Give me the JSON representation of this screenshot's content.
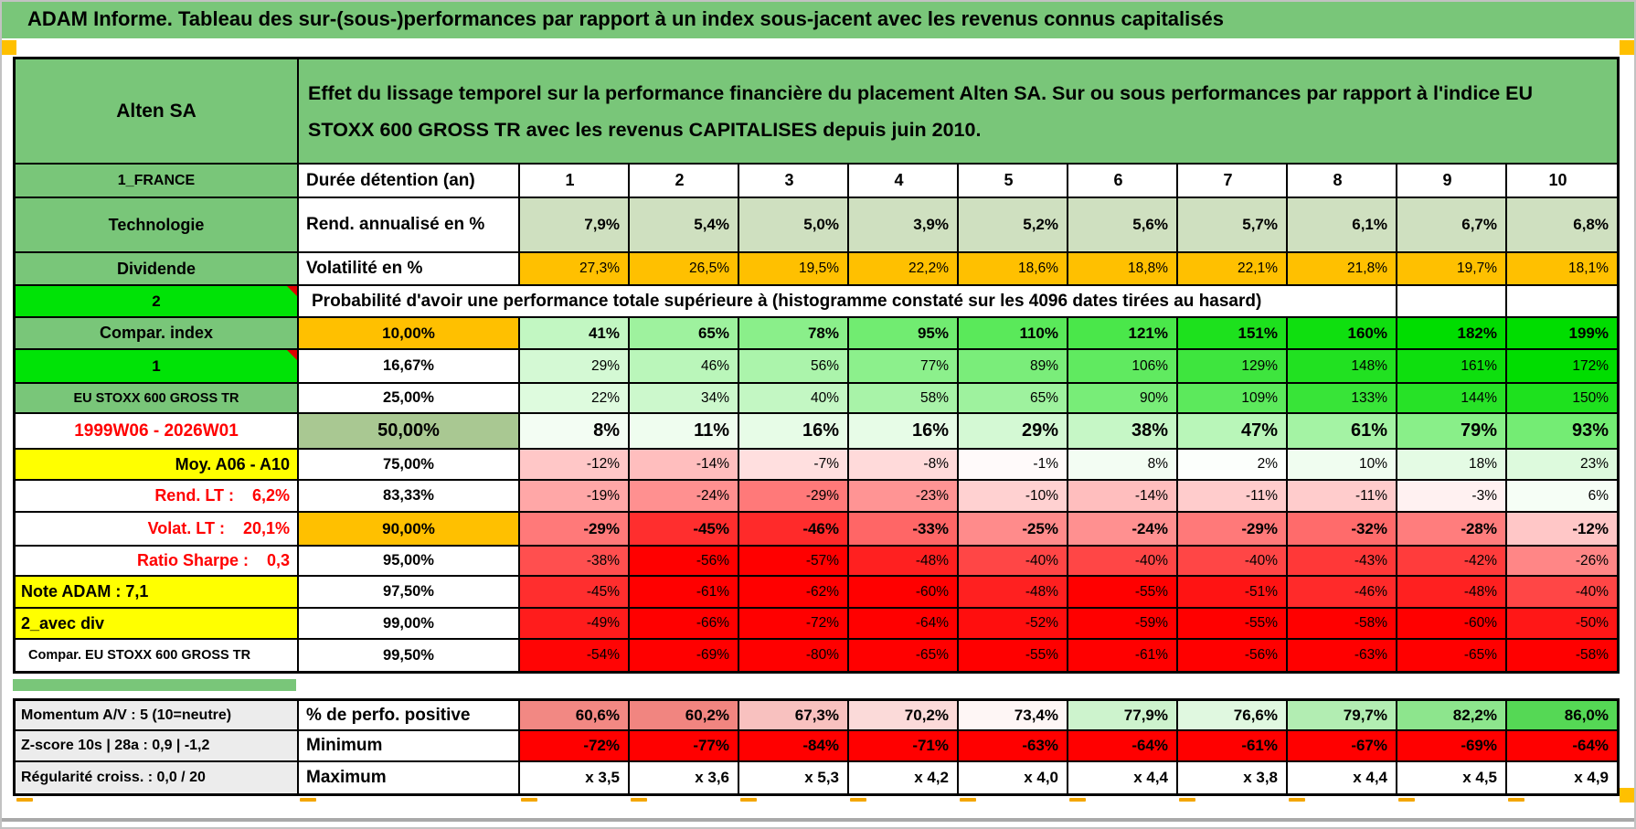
{
  "title_bar": {
    "text": "ADAM Informe. Tableau des sur-(sous-)performances par rapport à un index sous-jacent avec les revenus connus capitalisés"
  },
  "header": {
    "corner": "Alten SA",
    "description": "Effet du lissage temporel sur la performance financière du placement Alten SA. Sur ou sous performances par rapport à l'indice EU STOXX 600 GROSS TR avec les revenus CAPITALISES depuis juin 2010."
  },
  "colors": {
    "green": "#79c679",
    "bright_green": "#00e306",
    "orange": "#ffc000",
    "yellow": "#ffff00",
    "sage": "#a9c892",
    "pale_green_row": "#cfe0c0",
    "full_red": "#ff0000",
    "gray_label": "#ececec"
  },
  "main_rows": [
    {
      "left_text": "1_FRANCE",
      "left_style": "ls-green",
      "mid_text": "Durée détention (an)",
      "mid_style": "ms-label",
      "cells": [
        "1",
        "2",
        "3",
        "4",
        "5",
        "6",
        "7",
        "8",
        "9",
        "10"
      ],
      "cell_style": "colhead"
    },
    {
      "left_text": "Technologie",
      "left_style": "ls-green-lg",
      "mid_text": "Rend. annualisé en %",
      "mid_style": "ms-label",
      "cells": [
        "7,9%",
        "5,4%",
        "5,0%",
        "3,9%",
        "5,2%",
        "5,6%",
        "5,7%",
        "6,1%",
        "6,7%",
        "6,8%"
      ],
      "cell_style": "pale vb"
    },
    {
      "left_text": "Dividende",
      "left_style": "ls-green-lg",
      "mid_text": "Volatilité en %",
      "mid_style": "ms-label",
      "cells": [
        "27,3%",
        "26,5%",
        "19,5%",
        "22,2%",
        "18,6%",
        "18,8%",
        "22,1%",
        "21,8%",
        "19,7%",
        "18,1%"
      ],
      "cell_style": "orangec vplain"
    },
    {
      "left_text": "2",
      "left_style": "ls-bright",
      "merged_text": "Probabilité d'avoir une performance totale supérieure à (histogramme constaté sur les 4096 dates tirées au hasard)",
      "empty_cells": 2
    },
    {
      "left_text": "Compar. index",
      "left_style": "ls-green-lg",
      "mid_text": "10,00%",
      "mid_style": "ms-q-orange",
      "values": [
        41,
        65,
        78,
        95,
        110,
        121,
        151,
        160,
        182,
        199
      ],
      "emph": "vb"
    },
    {
      "left_text": "1",
      "left_style": "ls-bright",
      "mid_text": "16,67%",
      "mid_style": "ms-q",
      "values": [
        29,
        46,
        56,
        77,
        89,
        106,
        129,
        148,
        161,
        172
      ],
      "emph": "vplain"
    },
    {
      "left_text": "EU STOXX 600 GROSS TR",
      "left_style": "ls-green-sm",
      "mid_text": "25,00%",
      "mid_style": "ms-q",
      "values": [
        22,
        34,
        40,
        58,
        65,
        90,
        109,
        133,
        144,
        150
      ],
      "emph": "vplain"
    },
    {
      "left_text": "1999W06 - 2026W01",
      "left_style": "ls-red-center",
      "mid_text": "50,00%",
      "mid_style": "ms-q-sage",
      "values": [
        8,
        11,
        16,
        16,
        29,
        38,
        47,
        61,
        79,
        93
      ],
      "emph": "vbig"
    },
    {
      "left_text": "Moy. A06 - A10",
      "left_style": "ls-yellow-right",
      "mid_text": "75,00%",
      "mid_style": "ms-q",
      "values": [
        -12,
        -14,
        -7,
        -8,
        -1,
        8,
        2,
        10,
        18,
        23
      ],
      "emph": "vplain"
    },
    {
      "left_text": "Rend. LT :    6,2%",
      "left_style": "ls-red-right",
      "mid_text": "83,33%",
      "mid_style": "ms-q",
      "values": [
        -19,
        -24,
        -29,
        -23,
        -10,
        -14,
        -11,
        -11,
        -3,
        6
      ],
      "emph": "vplain"
    },
    {
      "left_text": "Volat. LT :    20,1%",
      "left_style": "ls-red-right",
      "mid_text": "90,00%",
      "mid_style": "ms-q-orange",
      "values": [
        -29,
        -45,
        -46,
        -33,
        -25,
        -24,
        -29,
        -32,
        -28,
        -12
      ],
      "emph": "vb"
    },
    {
      "left_text": "Ratio Sharpe :    0,3",
      "left_style": "ls-red-right",
      "mid_text": "95,00%",
      "mid_style": "ms-q",
      "values": [
        -38,
        -56,
        -57,
        -48,
        -40,
        -40,
        -40,
        -43,
        -42,
        -26
      ],
      "emph": "vplain"
    },
    {
      "left_text": "Note ADAM : 7,1",
      "left_style": "ls-yellow-left",
      "mid_text": "97,50%",
      "mid_style": "ms-q",
      "values": [
        -45,
        -61,
        -62,
        -60,
        -48,
        -55,
        -51,
        -46,
        -48,
        -40
      ],
      "emph": "vplain"
    },
    {
      "left_text": "2_avec div",
      "left_style": "ls-yellow-left",
      "mid_text": "99,00%",
      "mid_style": "ms-q",
      "values": [
        -49,
        -66,
        -72,
        -64,
        -52,
        -59,
        -55,
        -58,
        -60,
        -50
      ],
      "emph": "vplain"
    },
    {
      "left_text": "Compar. EU STOXX 600 GROSS TR",
      "left_style": "ls-white-left-sm",
      "mid_text": "99,50%",
      "mid_style": "ms-q",
      "values": [
        -54,
        -69,
        -80,
        -65,
        -55,
        -61,
        -56,
        -63,
        -65,
        -58
      ],
      "emph": "vplain"
    }
  ],
  "bottom_rows": [
    {
      "left_text": "Momentum A/V : 5 (10=neutre)",
      "mid_text": "% de perfo. positive",
      "cells": [
        "60,6%",
        "60,2%",
        "67,3%",
        "70,2%",
        "73,4%",
        "77,9%",
        "76,6%",
        "79,7%",
        "82,2%",
        "86,0%"
      ],
      "nums": [
        60.6,
        60.2,
        67.3,
        70.2,
        73.4,
        77.9,
        76.6,
        79.7,
        82.2,
        86.0
      ],
      "scale": "centered"
    },
    {
      "left_text": "Z-score 10s | 28a : 0,9 | -1,2",
      "mid_text": "Minimum",
      "values": [
        -72,
        -77,
        -84,
        -71,
        -63,
        -64,
        -61,
        -67,
        -69,
        -64
      ],
      "scale": "allred"
    },
    {
      "left_text": "Régularité croiss. : 0,0 / 20",
      "mid_text": "Maximum",
      "cells": [
        "x 3,5",
        "x 3,6",
        "x 5,3",
        "x 4,2",
        "x 4,0",
        "x 4,4",
        "x 3,8",
        "x 4,4",
        "x 4,5",
        "x 4,9"
      ],
      "scale": "plain"
    }
  ]
}
